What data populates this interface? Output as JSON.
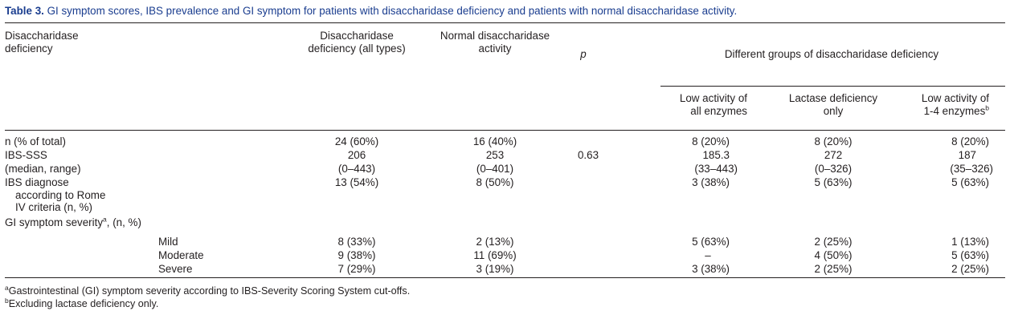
{
  "caption": {
    "label": "Table 3.",
    "title": "GI symptom scores, IBS prevalence and GI symptom for patients with disaccharidase deficiency and patients with normal disaccharidase activity."
  },
  "header": {
    "col0": [
      "Disaccharidase",
      "deficiency"
    ],
    "col1": [
      "Disaccharidase",
      "deficiency (all types)"
    ],
    "col2": [
      "Normal disaccharidase",
      "activity"
    ],
    "col3": "p",
    "group": "Different groups of disaccharidase deficiency",
    "sub1": [
      "Low activity of",
      "all enzymes"
    ],
    "sub2": [
      "Lactase deficiency",
      "only"
    ],
    "sub3": [
      "Low activity of",
      "1-4 enzymes"
    ],
    "sub3_sup": "b"
  },
  "rows": {
    "n": {
      "label": "n (% of total)",
      "v": [
        "24 (60%)",
        "16 (40%)",
        "",
        "8 (20%)",
        "8 (20%)",
        "8 (20%)"
      ]
    },
    "ibs_sss": {
      "label": "IBS-SSS",
      "v": [
        "206",
        "253",
        "0.63",
        "185.3",
        "272",
        "187"
      ]
    },
    "median": {
      "label": "(median, range)",
      "v": [
        "(0–443)",
        "(0–401)",
        "",
        "(33–443)",
        "(0–326)",
        "(35–326)"
      ]
    },
    "ibs_dx": {
      "label": [
        "IBS diagnose",
        "according to Rome",
        "IV criteria (n, %)"
      ],
      "v": [
        "13 (54%)",
        "8 (50%)",
        "",
        "3 (38%)",
        "5 (63%)",
        "5 (63%)"
      ]
    },
    "severity": {
      "label_pre": "GI symptom severity",
      "label_sup": "a",
      "label_post": ", (n, %)"
    },
    "mild": {
      "label": "Mild",
      "v": [
        "8 (33%)",
        "2 (13%)",
        "",
        "5 (63%)",
        "2 (25%)",
        "1 (13%)"
      ]
    },
    "moderate": {
      "label": "Moderate",
      "v": [
        "9 (38%)",
        "11 (69%)",
        "",
        "–",
        "4 (50%)",
        "5 (63%)"
      ]
    },
    "severe": {
      "label": "Severe",
      "v": [
        "7 (29%)",
        "3 (19%)",
        "",
        "3 (38%)",
        "2 (25%)",
        "2 (25%)"
      ]
    }
  },
  "footnotes": [
    {
      "mark": "a",
      "text": "Gastrointestinal (GI) symptom severity according to IBS-Severity Scoring System cut-offs."
    },
    {
      "mark": "b",
      "text": "Excluding lactase deficiency only."
    }
  ]
}
